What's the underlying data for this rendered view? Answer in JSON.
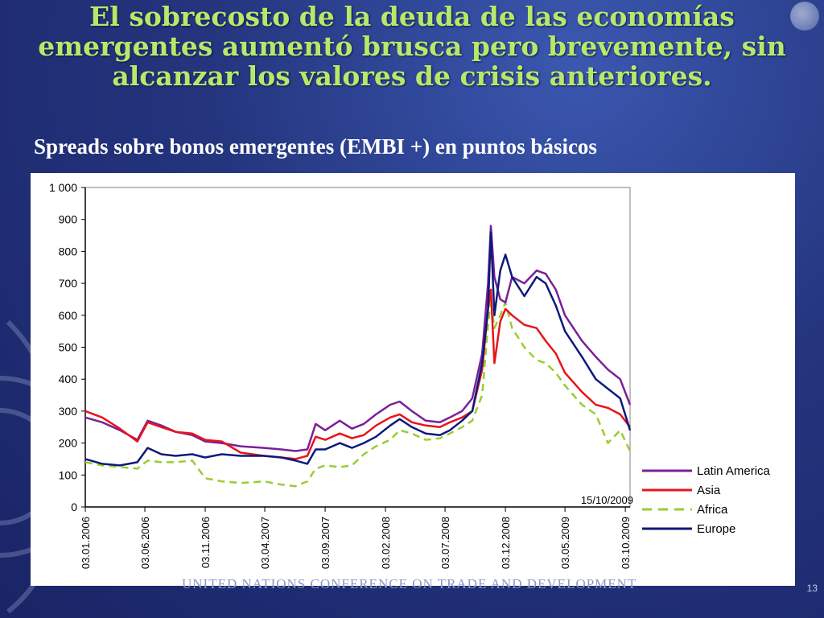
{
  "slide": {
    "title": "El sobrecosto de la deuda de las economías emergentes aumentó brusca pero brevemente, sin alcanzar los valores de crisis anteriores.",
    "subtitle": "Spreads sobre bonos emergentes (EMBI +) en puntos básicos",
    "footer": "UNITED NATIONS CONFERENCE ON TRADE AND DEVELOPMENT",
    "page_number": "13"
  },
  "chart_data": {
    "type": "line",
    "title": "",
    "xlabel": "",
    "ylabel": "",
    "ylim": [
      0,
      1000
    ],
    "y_ticks": [
      0,
      100,
      200,
      300,
      400,
      500,
      600,
      700,
      800,
      900,
      1000
    ],
    "y_tick_labels": [
      "0",
      "100",
      "200",
      "300",
      "400",
      "500",
      "600",
      "700",
      "800",
      "900",
      "1 000"
    ],
    "x_tick_labels": [
      "03.01.2006",
      "03.06.2006",
      "03.11.2006",
      "03.04.2007",
      "03.09.2007",
      "03.02.2008",
      "03.07.2008",
      "03.12.2008",
      "03.05.2009",
      "03.10.2009"
    ],
    "x_range": [
      "2006-01-03",
      "2009-10-15"
    ],
    "annotation": "15/10/2009",
    "legend_position": "right",
    "series": [
      {
        "name": "Latin America",
        "color": "#7b1f9a",
        "dash": "solid",
        "points": [
          [
            "2006-01-03",
            280
          ],
          [
            "2006-02-15",
            265
          ],
          [
            "2006-04-01",
            240
          ],
          [
            "2006-05-15",
            210
          ],
          [
            "2006-06-10",
            270
          ],
          [
            "2006-07-15",
            255
          ],
          [
            "2006-08-20",
            235
          ],
          [
            "2006-10-01",
            225
          ],
          [
            "2006-11-03",
            205
          ],
          [
            "2006-12-15",
            200
          ],
          [
            "2007-02-01",
            190
          ],
          [
            "2007-04-01",
            185
          ],
          [
            "2007-05-15",
            180
          ],
          [
            "2007-06-20",
            175
          ],
          [
            "2007-07-20",
            180
          ],
          [
            "2007-08-10",
            260
          ],
          [
            "2007-09-03",
            240
          ],
          [
            "2007-10-10",
            270
          ],
          [
            "2007-11-10",
            245
          ],
          [
            "2007-12-10",
            260
          ],
          [
            "2008-01-10",
            290
          ],
          [
            "2008-02-15",
            320
          ],
          [
            "2008-03-10",
            330
          ],
          [
            "2008-04-10",
            300
          ],
          [
            "2008-05-15",
            270
          ],
          [
            "2008-06-20",
            265
          ],
          [
            "2008-07-15",
            280
          ],
          [
            "2008-08-15",
            300
          ],
          [
            "2008-09-10",
            340
          ],
          [
            "2008-10-05",
            480
          ],
          [
            "2008-10-20",
            700
          ],
          [
            "2008-10-27",
            880
          ],
          [
            "2008-11-05",
            720
          ],
          [
            "2008-11-20",
            650
          ],
          [
            "2008-12-03",
            640
          ],
          [
            "2008-12-20",
            720
          ],
          [
            "2009-01-20",
            700
          ],
          [
            "2009-02-20",
            740
          ],
          [
            "2009-03-15",
            730
          ],
          [
            "2009-04-10",
            680
          ],
          [
            "2009-05-03",
            600
          ],
          [
            "2009-06-15",
            520
          ],
          [
            "2009-07-20",
            470
          ],
          [
            "2009-08-20",
            430
          ],
          [
            "2009-09-20",
            400
          ],
          [
            "2009-10-15",
            320
          ]
        ]
      },
      {
        "name": "Asia",
        "color": "#e8141a",
        "dash": "solid",
        "points": [
          [
            "2006-01-03",
            300
          ],
          [
            "2006-02-15",
            280
          ],
          [
            "2006-04-01",
            245
          ],
          [
            "2006-05-15",
            205
          ],
          [
            "2006-06-10",
            265
          ],
          [
            "2006-07-15",
            250
          ],
          [
            "2006-08-20",
            235
          ],
          [
            "2006-10-01",
            230
          ],
          [
            "2006-11-03",
            210
          ],
          [
            "2006-12-15",
            205
          ],
          [
            "2007-02-01",
            170
          ],
          [
            "2007-04-01",
            160
          ],
          [
            "2007-05-15",
            155
          ],
          [
            "2007-06-20",
            150
          ],
          [
            "2007-07-20",
            160
          ],
          [
            "2007-08-10",
            220
          ],
          [
            "2007-09-03",
            210
          ],
          [
            "2007-10-10",
            230
          ],
          [
            "2007-11-10",
            215
          ],
          [
            "2007-12-10",
            225
          ],
          [
            "2008-01-10",
            255
          ],
          [
            "2008-02-15",
            280
          ],
          [
            "2008-03-10",
            290
          ],
          [
            "2008-04-10",
            265
          ],
          [
            "2008-05-15",
            255
          ],
          [
            "2008-06-20",
            250
          ],
          [
            "2008-07-15",
            265
          ],
          [
            "2008-08-15",
            280
          ],
          [
            "2008-09-10",
            300
          ],
          [
            "2008-10-05",
            430
          ],
          [
            "2008-10-20",
            620
          ],
          [
            "2008-10-27",
            680
          ],
          [
            "2008-11-05",
            450
          ],
          [
            "2008-11-20",
            580
          ],
          [
            "2008-12-03",
            620
          ],
          [
            "2008-12-20",
            600
          ],
          [
            "2009-01-20",
            570
          ],
          [
            "2009-02-20",
            560
          ],
          [
            "2009-03-15",
            520
          ],
          [
            "2009-04-10",
            480
          ],
          [
            "2009-05-03",
            420
          ],
          [
            "2009-06-15",
            360
          ],
          [
            "2009-07-20",
            320
          ],
          [
            "2009-08-20",
            310
          ],
          [
            "2009-09-20",
            290
          ],
          [
            "2009-10-15",
            250
          ]
        ]
      },
      {
        "name": "Africa",
        "color": "#9acd32",
        "dash": "dashed",
        "points": [
          [
            "2006-01-03",
            140
          ],
          [
            "2006-02-15",
            130
          ],
          [
            "2006-04-01",
            125
          ],
          [
            "2006-05-15",
            120
          ],
          [
            "2006-06-10",
            145
          ],
          [
            "2006-07-15",
            140
          ],
          [
            "2006-08-20",
            140
          ],
          [
            "2006-10-01",
            145
          ],
          [
            "2006-11-03",
            90
          ],
          [
            "2006-12-15",
            80
          ],
          [
            "2007-02-01",
            75
          ],
          [
            "2007-04-01",
            80
          ],
          [
            "2007-05-15",
            70
          ],
          [
            "2007-06-20",
            65
          ],
          [
            "2007-07-20",
            80
          ],
          [
            "2007-08-10",
            120
          ],
          [
            "2007-09-03",
            130
          ],
          [
            "2007-10-10",
            125
          ],
          [
            "2007-11-10",
            130
          ],
          [
            "2007-12-10",
            165
          ],
          [
            "2008-01-10",
            190
          ],
          [
            "2008-02-15",
            210
          ],
          [
            "2008-03-10",
            240
          ],
          [
            "2008-04-10",
            230
          ],
          [
            "2008-05-15",
            210
          ],
          [
            "2008-06-20",
            215
          ],
          [
            "2008-07-15",
            230
          ],
          [
            "2008-08-15",
            250
          ],
          [
            "2008-09-10",
            270
          ],
          [
            "2008-10-05",
            350
          ],
          [
            "2008-10-20",
            570
          ],
          [
            "2008-10-27",
            650
          ],
          [
            "2008-11-05",
            560
          ],
          [
            "2008-11-20",
            600
          ],
          [
            "2008-12-03",
            640
          ],
          [
            "2008-12-20",
            560
          ],
          [
            "2009-01-20",
            500
          ],
          [
            "2009-02-20",
            460
          ],
          [
            "2009-03-15",
            450
          ],
          [
            "2009-04-10",
            420
          ],
          [
            "2009-05-03",
            380
          ],
          [
            "2009-06-15",
            320
          ],
          [
            "2009-07-20",
            290
          ],
          [
            "2009-08-20",
            200
          ],
          [
            "2009-09-20",
            240
          ],
          [
            "2009-10-15",
            175
          ]
        ]
      },
      {
        "name": "Europe",
        "color": "#0d1a7a",
        "dash": "solid",
        "points": [
          [
            "2006-01-03",
            150
          ],
          [
            "2006-02-15",
            135
          ],
          [
            "2006-04-01",
            130
          ],
          [
            "2006-05-15",
            140
          ],
          [
            "2006-06-10",
            185
          ],
          [
            "2006-07-15",
            165
          ],
          [
            "2006-08-20",
            160
          ],
          [
            "2006-10-01",
            165
          ],
          [
            "2006-11-03",
            155
          ],
          [
            "2006-12-15",
            165
          ],
          [
            "2007-02-01",
            160
          ],
          [
            "2007-04-01",
            160
          ],
          [
            "2007-05-15",
            155
          ],
          [
            "2007-06-20",
            145
          ],
          [
            "2007-07-20",
            135
          ],
          [
            "2007-08-10",
            180
          ],
          [
            "2007-09-03",
            180
          ],
          [
            "2007-10-10",
            200
          ],
          [
            "2007-11-10",
            185
          ],
          [
            "2007-12-10",
            200
          ],
          [
            "2008-01-10",
            220
          ],
          [
            "2008-02-15",
            255
          ],
          [
            "2008-03-10",
            275
          ],
          [
            "2008-04-10",
            250
          ],
          [
            "2008-05-15",
            230
          ],
          [
            "2008-06-20",
            225
          ],
          [
            "2008-07-15",
            240
          ],
          [
            "2008-08-15",
            270
          ],
          [
            "2008-09-10",
            300
          ],
          [
            "2008-10-05",
            450
          ],
          [
            "2008-10-20",
            620
          ],
          [
            "2008-10-27",
            860
          ],
          [
            "2008-11-05",
            600
          ],
          [
            "2008-11-20",
            740
          ],
          [
            "2008-12-03",
            790
          ],
          [
            "2008-12-20",
            720
          ],
          [
            "2009-01-20",
            660
          ],
          [
            "2009-02-20",
            720
          ],
          [
            "2009-03-15",
            700
          ],
          [
            "2009-04-10",
            630
          ],
          [
            "2009-05-03",
            550
          ],
          [
            "2009-06-15",
            470
          ],
          [
            "2009-07-20",
            400
          ],
          [
            "2009-08-20",
            370
          ],
          [
            "2009-09-20",
            340
          ],
          [
            "2009-10-15",
            240
          ]
        ]
      }
    ]
  }
}
